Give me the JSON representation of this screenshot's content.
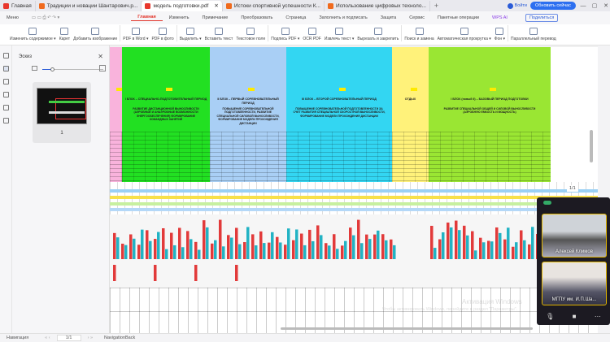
{
  "tabs": [
    {
      "label": "Главная",
      "kind": "home"
    },
    {
      "label": "Традиции и новации Шантарович.p..."
    },
    {
      "label": "модель подготовки.pdf",
      "active": true
    },
    {
      "label": "Истоки спортивной успешности К..."
    },
    {
      "label": "Использование цифровых техноло..."
    }
  ],
  "tab_new": "+",
  "login": "Войти",
  "update_button": "Обновить сейчас",
  "menu_label": "Меню",
  "menus": [
    "Главная",
    "Изменить",
    "Примечание",
    "Преобразовать",
    "Страница",
    "Заполнить и подписать",
    "Защита",
    "Сервис",
    "Пакетные операции",
    "WPS AI"
  ],
  "share_button": "Поделиться",
  "toolbar": [
    "Изменить содержимое ▾",
    "Карет",
    "Добавить изображение",
    "PDF в Word ▾",
    "PDF в фото",
    "Выделить ▾",
    "Вставить текст",
    "Текстовое поле",
    "Подпись PDF ▾",
    "OCR PDF",
    "Извлечь текст ▾",
    "Вырезать и закрепить",
    "Поиск и замена",
    "Автоматическая прокрутка ▾",
    "Фон ▾",
    "Параллельный перевод"
  ],
  "thumbnails": {
    "title": "Эскиз",
    "page": "1"
  },
  "document": {
    "columns": [
      {
        "color": "#f9b3dc",
        "heading": "",
        "sub": ""
      },
      {
        "color": "#22e022",
        "heading": "I БЛОК – СПЕЦИАЛЬНО-ПОДГОТОВИТЕЛЬНЫЙ ПЕРИОД",
        "sub": "РАЗВИТИЕ ДИСТАНЦИОННОЙ ВЫНОСЛИВОСТИ (АЭРОБНЫЕ И АНАЭРОБНЫЕ ВОЗМОЖНОСТИ ЭНЕРГООБЕСПЕЧЕНИЯ) ФОРМИРОВАНИЕ КОМАНДНЫХ ЗАНЯТИЙ"
      },
      {
        "color": "#a9cff5",
        "heading": "II БЛОК – ПЕРВЫЙ СОРЕВНОВАТЕЛЬНЫЙ ПЕРИОД",
        "sub": "ПОВЫШЕНИЕ СОРЕВНОВАТЕЛЬНОЙ ПОДГОТОВЛЕННОСТИ, РАЗВИТИЕ СПЕЦИАЛЬНОЙ СИЛОВОЙ ВЫНОСЛИВОСТИ, ФОРМИРОВАНИЕ МОДЕЛИ ПРОХОЖДЕНИЯ ДИСТАНЦИИ"
      },
      {
        "color": "#33d6f2",
        "heading": "III БЛОК – ВТОРОЙ СОРЕВНОВАТЕЛЬНЫЙ ПЕРИОД",
        "sub": "ПОВЫШЕНИЕ СОРЕВНОВАТЕЛЬНОЙ ПОДГОТОВЛЕННОСТИ ЗА СЧЕТ РАЗВИТИЯ СПЕЦИАЛЬНОЙ СКОРОСТНОЙ ВЫНОСЛИВОСТИ, ФОРМИРОВАНИЕ МОДЕЛИ ПРОХОЖДЕНИЯ ДИСТАНЦИИ"
      },
      {
        "color": "#fff27a",
        "heading": "ОТДЫХ",
        "sub": ""
      },
      {
        "color": "#9ae633",
        "heading": "I БЛОК (новый II) – БАЗОВЫЙ ПЕРИОД ПОДГОТОВКИ",
        "sub": "РАЗВИТИЕ СПЕЦИАЛЬНОЙ ОБЩЕЙ И СИЛОВОЙ ВЫНОСЛИВОСТИ (АЭРОБНУЮ ЕМКОСТЬ И МОЩНОСТЬ)"
      }
    ]
  },
  "page_indicator": "1/1",
  "watermark": {
    "title": "Активация Windows",
    "text": "Чтобы активировать Windows, перейдите в раздел \"Параметры\"."
  },
  "video_call": {
    "participants": [
      "Алексей Климов",
      "МГПУ им. И.П.Ша..."
    ]
  },
  "status_bar": {
    "nav": "Навигация",
    "page": "1/1",
    "back": "NavigationBack"
  }
}
